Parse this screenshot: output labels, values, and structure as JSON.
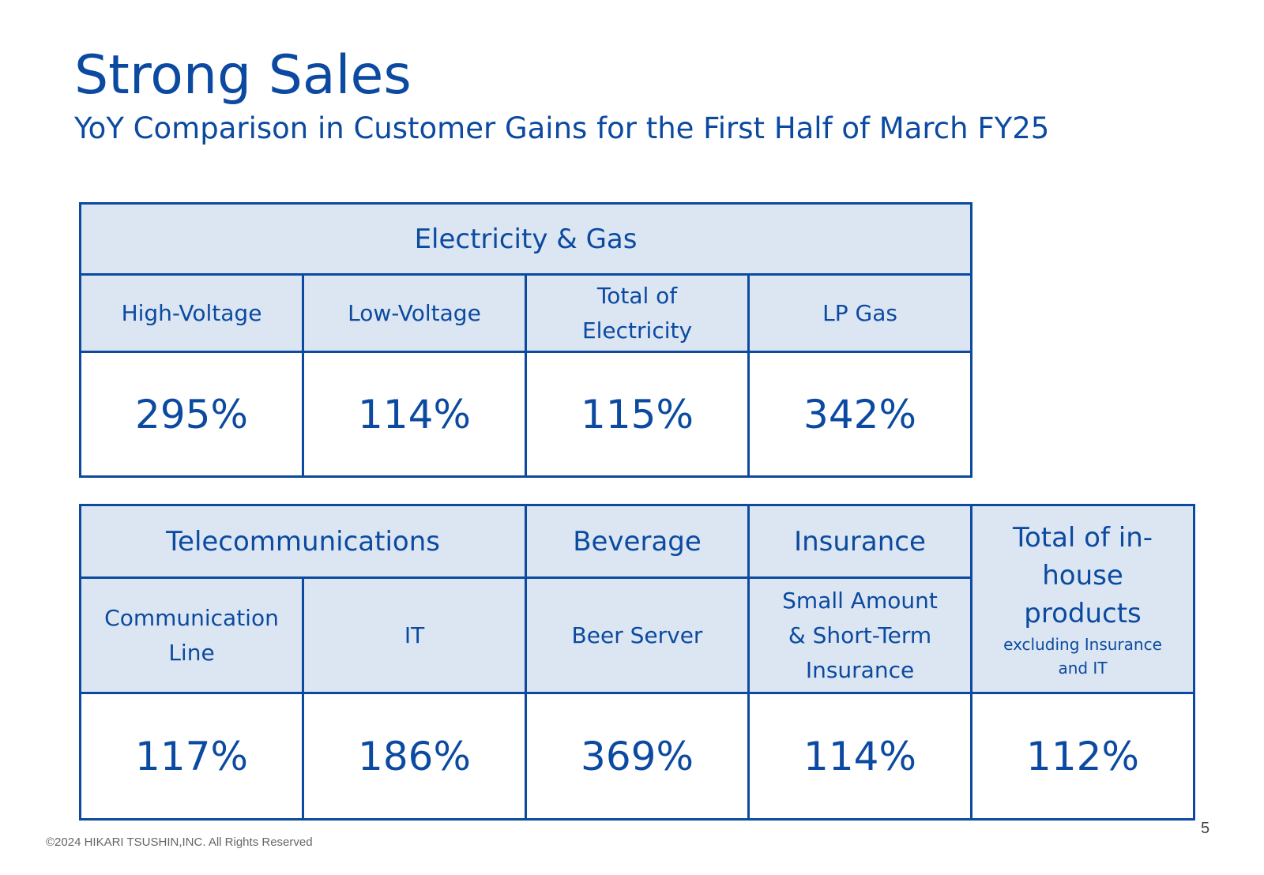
{
  "header": {
    "title": "Strong Sales",
    "subtitle": "YoY Comparison in Customer Gains for the First Half of March FY25"
  },
  "table_energy": {
    "category": "Electricity & Gas",
    "columns": [
      {
        "label": "High-Voltage",
        "value": "295%"
      },
      {
        "label": "Low-Voltage",
        "value": "114%"
      },
      {
        "label_line1": "Total of",
        "label_line2": "Electricity",
        "value": "115%"
      },
      {
        "label": "LP Gas",
        "value": "342%"
      }
    ]
  },
  "table_other": {
    "categories": {
      "telecom": "Telecommunications",
      "beverage": "Beverage",
      "insurance": "Insurance",
      "total_line1": "Total of in-",
      "total_line2": "house",
      "total_line3": "products",
      "total_note_line1": "excluding Insurance",
      "total_note_line2": "and IT"
    },
    "columns": [
      {
        "label_line1": "Communication",
        "label_line2": "Line",
        "value": "117%"
      },
      {
        "label": "IT",
        "value": "186%"
      },
      {
        "label": "Beer Server",
        "value": "369%"
      },
      {
        "label_line1": "Small Amount",
        "label_line2": "& Short-Term",
        "label_line3": "Insurance",
        "value": "114%"
      },
      {
        "value": "112%"
      }
    ]
  },
  "footer": {
    "copyright": "©2024 HIKARI TSUSHIN,INC. All Rights Reserved",
    "page_number": "5"
  }
}
